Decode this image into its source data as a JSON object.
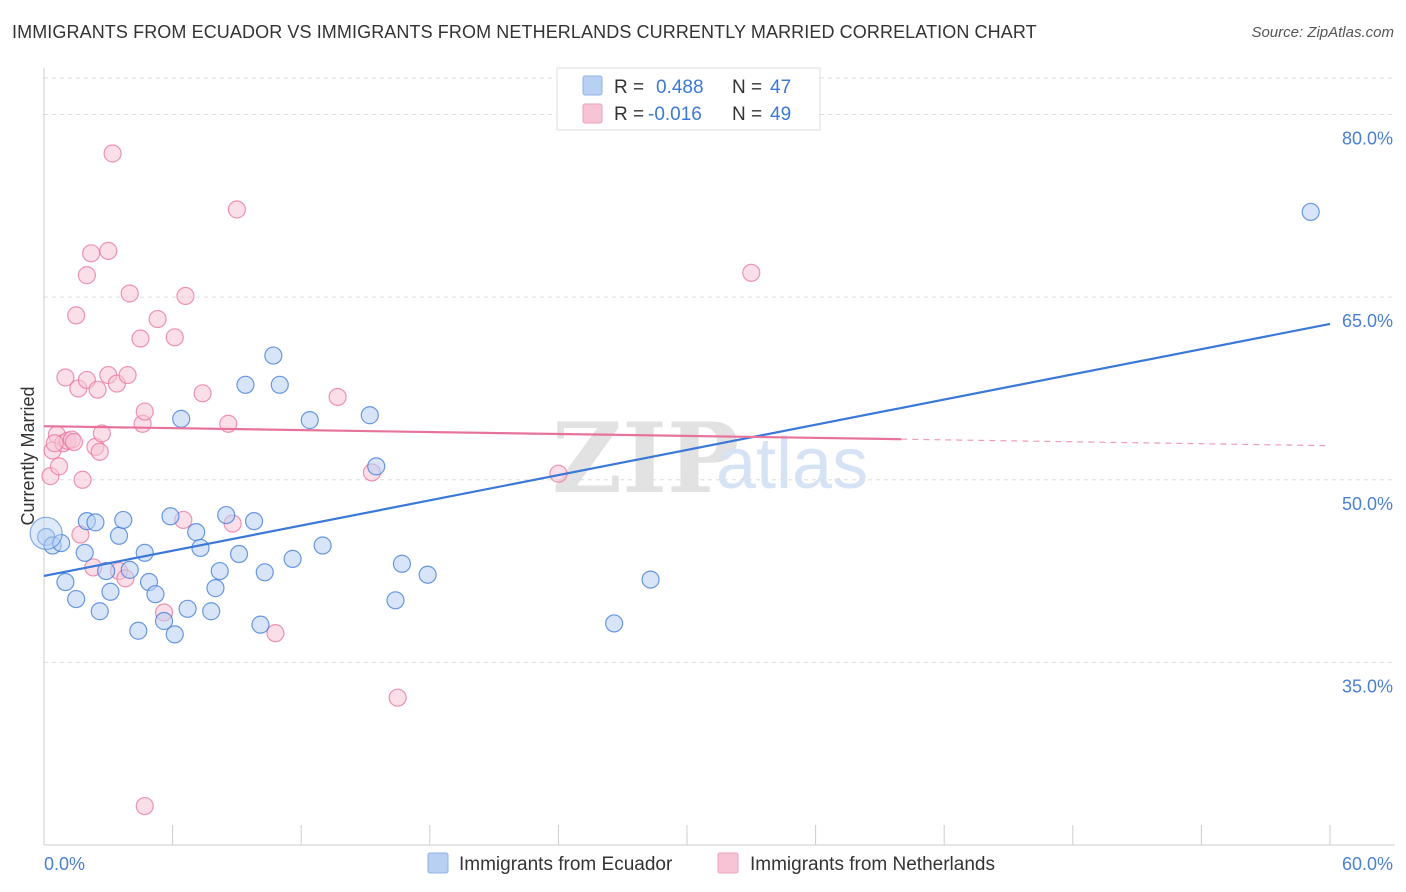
{
  "title": "IMMIGRANTS FROM ECUADOR VS IMMIGRANTS FROM NETHERLANDS CURRENTLY MARRIED CORRELATION CHART",
  "source": "Source: ZipAtlas.com",
  "watermark": {
    "zip": "ZIP",
    "atlas": "atlas"
  },
  "colors": {
    "blue": "#3b78d8",
    "blue_fill": "#b8d0f2",
    "pink": "#e8739a",
    "pink_fill": "#f7c4d5",
    "tick": "#4a7fd4",
    "grid": "#dddddd"
  },
  "stats_legend": {
    "r_label": "R =",
    "n_label": "N =",
    "rows": [
      {
        "series": "Immigrants from Ecuador",
        "r": "0.488",
        "n": "47"
      },
      {
        "series": "Immigrants from Netherlands",
        "r": "-0.016",
        "n": "49"
      }
    ]
  },
  "chart_data": {
    "type": "scatter",
    "title": "IMMIGRANTS FROM ECUADOR VS IMMIGRANTS FROM NETHERLANDS CURRENTLY MARRIED CORRELATION CHART",
    "xlabel": "",
    "ylabel": "Currently Married",
    "xlim": [
      0,
      60
    ],
    "ylim": [
      20,
      83
    ],
    "x_tick_labels": [
      "0.0%",
      "60.0%"
    ],
    "y_ticks": [
      {
        "value": 80,
        "label": "80.0%"
      },
      {
        "value": 65,
        "label": "65.0%"
      },
      {
        "value": 50,
        "label": "50.0%"
      },
      {
        "value": 35,
        "label": "35.0%"
      }
    ],
    "x_minor_ticks": [
      0,
      6,
      12,
      18,
      24,
      30,
      36,
      42,
      48,
      54,
      60
    ],
    "legend_position": "top-center",
    "series": [
      {
        "name": "Immigrants from Ecuador",
        "color": "blue",
        "points": [
          [
            0.1,
            45.3
          ],
          [
            0.4,
            44.6
          ],
          [
            0.8,
            44.8
          ],
          [
            1.0,
            41.6
          ],
          [
            1.5,
            40.2
          ],
          [
            1.9,
            44.0
          ],
          [
            2.0,
            46.6
          ],
          [
            2.4,
            46.5
          ],
          [
            2.6,
            39.2
          ],
          [
            2.9,
            42.5
          ],
          [
            3.1,
            40.8
          ],
          [
            3.5,
            45.4
          ],
          [
            3.7,
            46.7
          ],
          [
            4.0,
            42.6
          ],
          [
            4.4,
            37.6
          ],
          [
            4.7,
            44.0
          ],
          [
            4.9,
            41.6
          ],
          [
            5.2,
            40.6
          ],
          [
            5.6,
            38.4
          ],
          [
            5.9,
            47.0
          ],
          [
            6.1,
            37.3
          ],
          [
            6.4,
            55.0
          ],
          [
            6.7,
            39.4
          ],
          [
            7.1,
            45.7
          ],
          [
            7.3,
            44.4
          ],
          [
            7.8,
            39.2
          ],
          [
            8.0,
            41.1
          ],
          [
            8.2,
            42.5
          ],
          [
            8.5,
            47.1
          ],
          [
            9.1,
            43.9
          ],
          [
            9.4,
            57.8
          ],
          [
            9.8,
            46.6
          ],
          [
            10.1,
            38.1
          ],
          [
            10.3,
            42.4
          ],
          [
            10.7,
            60.2
          ],
          [
            11.0,
            57.8
          ],
          [
            11.6,
            43.5
          ],
          [
            12.4,
            54.9
          ],
          [
            13.0,
            44.6
          ],
          [
            15.2,
            55.3
          ],
          [
            15.5,
            51.1
          ],
          [
            16.4,
            40.1
          ],
          [
            16.7,
            43.1
          ],
          [
            17.9,
            42.2
          ],
          [
            26.6,
            38.2
          ],
          [
            28.3,
            41.8
          ],
          [
            59.1,
            72.0
          ]
        ]
      },
      {
        "name": "Immigrants from Netherlands",
        "color": "pink",
        "points": [
          [
            0.3,
            50.3
          ],
          [
            0.4,
            52.4
          ],
          [
            0.6,
            53.7
          ],
          [
            0.7,
            51.1
          ],
          [
            0.9,
            53.0
          ],
          [
            1.0,
            58.4
          ],
          [
            1.1,
            53.2
          ],
          [
            1.3,
            53.3
          ],
          [
            1.5,
            63.5
          ],
          [
            1.6,
            57.5
          ],
          [
            1.7,
            45.5
          ],
          [
            1.8,
            50.0
          ],
          [
            2.0,
            58.2
          ],
          [
            2.0,
            66.8
          ],
          [
            2.2,
            68.6
          ],
          [
            2.3,
            42.8
          ],
          [
            2.4,
            52.7
          ],
          [
            2.5,
            57.4
          ],
          [
            2.6,
            52.3
          ],
          [
            2.7,
            53.8
          ],
          [
            3.0,
            58.6
          ],
          [
            3.0,
            68.8
          ],
          [
            3.2,
            76.8
          ],
          [
            3.4,
            57.9
          ],
          [
            3.5,
            42.5
          ],
          [
            3.8,
            41.9
          ],
          [
            3.9,
            58.6
          ],
          [
            4.0,
            65.3
          ],
          [
            4.5,
            61.6
          ],
          [
            4.6,
            54.6
          ],
          [
            4.7,
            55.6
          ],
          [
            4.7,
            23.2
          ],
          [
            5.3,
            63.2
          ],
          [
            5.6,
            39.1
          ],
          [
            6.1,
            61.7
          ],
          [
            6.5,
            46.7
          ],
          [
            6.6,
            65.1
          ],
          [
            7.4,
            57.1
          ],
          [
            8.6,
            54.6
          ],
          [
            8.8,
            46.4
          ],
          [
            9.0,
            72.2
          ],
          [
            10.8,
            37.4
          ],
          [
            13.7,
            56.8
          ],
          [
            15.3,
            50.6
          ],
          [
            16.5,
            32.1
          ],
          [
            24.0,
            50.5
          ],
          [
            33.0,
            67.0
          ],
          [
            0.5,
            53.0
          ],
          [
            1.4,
            53.1
          ]
        ]
      }
    ],
    "trend_lines": [
      {
        "series": "Immigrants from Ecuador",
        "x_start": 0,
        "y_start": 42.1,
        "x_end": 60,
        "y_end": 62.8,
        "dashed_from": null
      },
      {
        "series": "Immigrants from Netherlands",
        "x_start": 0,
        "y_start": 54.4,
        "x_end": 60,
        "y_end": 52.8,
        "dashed_from": 40
      }
    ]
  }
}
